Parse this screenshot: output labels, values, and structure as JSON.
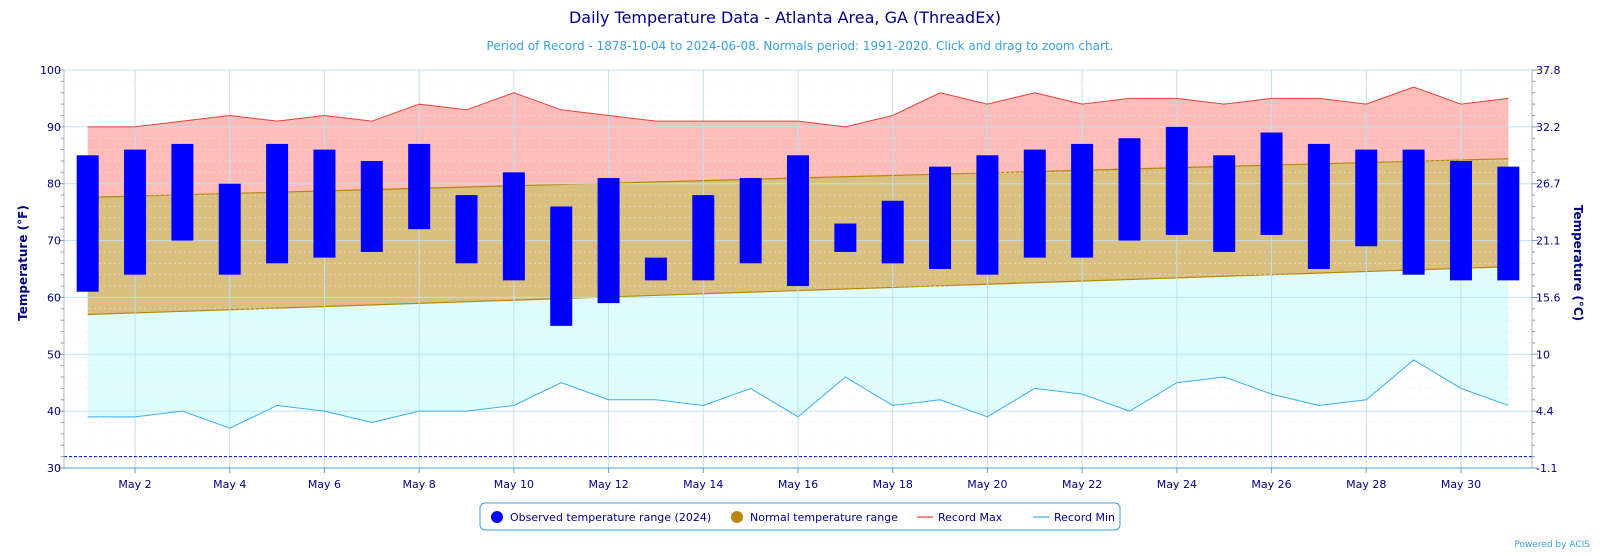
{
  "chart_data": {
    "type": "bar",
    "title": "Daily Temperature Data - Atlanta Area, GA (ThreadEx)",
    "subtitle": "Period of Record - 1878-10-04 to 2024-06-08. Normals period: 1991-2020. Click and drag to zoom chart.",
    "ylabel": "Temperature (°F)",
    "y2label": "Temperature (°C)",
    "ylim": [
      30,
      100
    ],
    "y_ticks": [
      "30",
      "40",
      "50",
      "60",
      "70",
      "80",
      "90",
      "100"
    ],
    "y2_ticks": [
      "-1.1",
      "4.4",
      "10",
      "15.6",
      "21.1",
      "26.7",
      "32.2",
      "37.8"
    ],
    "x_tick_labels": [
      {
        "day": 2,
        "label": "May 2"
      },
      {
        "day": 4,
        "label": "May 4"
      },
      {
        "day": 6,
        "label": "May 6"
      },
      {
        "day": 8,
        "label": "May 8"
      },
      {
        "day": 10,
        "label": "May 10"
      },
      {
        "day": 12,
        "label": "May 12"
      },
      {
        "day": 14,
        "label": "May 14"
      },
      {
        "day": 16,
        "label": "May 16"
      },
      {
        "day": 18,
        "label": "May 18"
      },
      {
        "day": 20,
        "label": "May 20"
      },
      {
        "day": 22,
        "label": "May 22"
      },
      {
        "day": 24,
        "label": "May 24"
      },
      {
        "day": 26,
        "label": "May 26"
      },
      {
        "day": 28,
        "label": "May 28"
      },
      {
        "day": 30,
        "label": "May 30"
      }
    ],
    "days": [
      1,
      2,
      3,
      4,
      5,
      6,
      7,
      8,
      9,
      10,
      11,
      12,
      13,
      14,
      15,
      16,
      17,
      18,
      19,
      20,
      21,
      22,
      23,
      24,
      25,
      26,
      27,
      28,
      29,
      30,
      31
    ],
    "observed_high": [
      85,
      86,
      87,
      80,
      87,
      86,
      84,
      87,
      78,
      82,
      76,
      81,
      67,
      78,
      81,
      85,
      73,
      77,
      83,
      85,
      86,
      87,
      88,
      90,
      85,
      89,
      87,
      86,
      86,
      84,
      83
    ],
    "observed_low": [
      61,
      64,
      70,
      64,
      66,
      67,
      68,
      72,
      66,
      63,
      55,
      59,
      63,
      63,
      66,
      62,
      68,
      66,
      65,
      64,
      67,
      67,
      70,
      71,
      68,
      71,
      65,
      69,
      64,
      63,
      63
    ],
    "normal_high_start": 77.6,
    "normal_high_end": 84.4,
    "normal_low_start": 57.0,
    "normal_low_end": 65.4,
    "record_max": [
      90,
      90,
      91,
      92,
      91,
      92,
      91,
      94,
      93,
      96,
      93,
      92,
      91,
      91,
      91,
      91,
      90,
      92,
      96,
      94,
      96,
      94,
      95,
      95,
      94,
      95,
      95,
      94,
      97,
      94,
      95
    ],
    "record_min": [
      39,
      39,
      40,
      37,
      41,
      40,
      38,
      40,
      40,
      41,
      45,
      42,
      42,
      41,
      44,
      39,
      46,
      41,
      42,
      39,
      44,
      43,
      40,
      45,
      46,
      43,
      41,
      42,
      49,
      44,
      41
    ],
    "reference_line": 32,
    "legend": [
      {
        "label": "Observed temperature range (2024)",
        "color": "#0000ff",
        "marker": "circle"
      },
      {
        "label": "Normal temperature range",
        "color": "#b8860b",
        "marker": "circle"
      },
      {
        "label": "Record Max",
        "color": "#e8403c",
        "marker": "line"
      },
      {
        "label": "Record Min",
        "color": "#3ab0e8",
        "marker": "line"
      }
    ],
    "colors": {
      "observed": "#0000ff",
      "normal_fill": "#d9bf80",
      "normal_edge": "#b8860b",
      "record_max_line": "#e8403c",
      "record_max_fill": "#fdbcb8",
      "record_min_line": "#3ab0e8",
      "record_min_fill": "#e0fdfd",
      "grid": "#bfe0f4",
      "reference": "#0000cc"
    },
    "legend_position": "bottom-center",
    "grid": true,
    "credit": "Powered by ACIS"
  }
}
